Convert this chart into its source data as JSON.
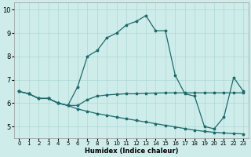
{
  "xlabel": "Humidex (Indice chaleur)",
  "bg_color": "#cdecea",
  "line_color": "#1e6b6b",
  "grid_color": "#aed8d5",
  "xlim": [
    -0.5,
    23.5
  ],
  "ylim": [
    4.5,
    10.3
  ],
  "xticks": [
    0,
    1,
    2,
    3,
    4,
    5,
    6,
    7,
    8,
    9,
    10,
    11,
    12,
    13,
    14,
    15,
    16,
    17,
    18,
    19,
    20,
    21,
    22,
    23
  ],
  "yticks": [
    5,
    6,
    7,
    8,
    9,
    10
  ],
  "line_peak_x": [
    0,
    1,
    2,
    3,
    4,
    5,
    6,
    7,
    8,
    9,
    10,
    11,
    12,
    13,
    14,
    15,
    16,
    17,
    18,
    19,
    20,
    21,
    22,
    23
  ],
  "line_peak_y": [
    6.5,
    6.4,
    6.2,
    6.2,
    6.0,
    5.9,
    6.7,
    8.0,
    8.25,
    8.8,
    9.0,
    9.35,
    9.5,
    9.75,
    9.1,
    9.1,
    7.2,
    6.4,
    6.3,
    5.0,
    4.9,
    5.4,
    7.1,
    6.5
  ],
  "line_flat_x": [
    0,
    1,
    2,
    3,
    4,
    5,
    6,
    7,
    8,
    9,
    10,
    11,
    12,
    13,
    14,
    15,
    16,
    17,
    18,
    19,
    20,
    21,
    22,
    23
  ],
  "line_flat_y": [
    6.5,
    6.4,
    6.2,
    6.2,
    6.0,
    5.9,
    5.9,
    6.15,
    6.3,
    6.35,
    6.38,
    6.4,
    6.4,
    6.42,
    6.43,
    6.44,
    6.44,
    6.44,
    6.44,
    6.44,
    6.44,
    6.44,
    6.44,
    6.44
  ],
  "line_dec_x": [
    0,
    1,
    2,
    3,
    4,
    5,
    6,
    7,
    8,
    9,
    10,
    11,
    12,
    13,
    14,
    15,
    16,
    17,
    18,
    19,
    20,
    21,
    22,
    23
  ],
  "line_dec_y": [
    6.5,
    6.4,
    6.2,
    6.2,
    6.0,
    5.9,
    5.75,
    5.65,
    5.55,
    5.48,
    5.4,
    5.33,
    5.26,
    5.19,
    5.12,
    5.05,
    4.98,
    4.91,
    4.84,
    4.79,
    4.75,
    4.72,
    4.7,
    4.68
  ],
  "markersize": 2.5,
  "linewidth": 0.9,
  "xlabel_fontsize": 6.0,
  "tick_fontsize_x": 5.0,
  "tick_fontsize_y": 6.0
}
